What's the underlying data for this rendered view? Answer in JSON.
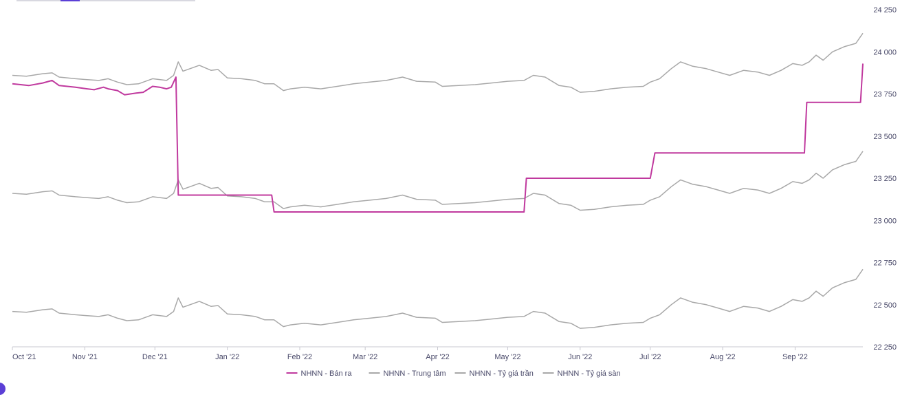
{
  "chart_data": {
    "type": "line",
    "xlim": [
      "2021-10-01",
      "2022-09-30"
    ],
    "ylim": [
      22250,
      24250
    ],
    "yticks": [
      22250,
      22500,
      22750,
      23000,
      23250,
      23500,
      23750,
      24000,
      24250
    ],
    "ytick_labels": [
      "22 250",
      "22 500",
      "22 750",
      "23 000",
      "23 250",
      "23 500",
      "23 750",
      "24 000",
      "24 250"
    ],
    "xticks": [
      "2021-10-01",
      "2021-11-01",
      "2021-12-01",
      "2022-01-01",
      "2022-02-01",
      "2022-03-01",
      "2022-04-01",
      "2022-05-01",
      "2022-06-01",
      "2022-07-01",
      "2022-08-01",
      "2022-09-01"
    ],
    "xtick_labels": [
      "Oct '21",
      "Nov '21",
      "Dec '21",
      "Jan '22",
      "Feb '22",
      "Mar '22",
      "Apr '22",
      "May '22",
      "Jun '22",
      "Jul '22",
      "Aug '22",
      "Sep '22"
    ],
    "legend_position": "bottom-center",
    "grid": false,
    "series": [
      {
        "name": "NHNN - Bán ra",
        "color": "#c0399e",
        "points": [
          [
            "2021-10-01",
            23810
          ],
          [
            "2021-10-08",
            23800
          ],
          [
            "2021-10-14",
            23815
          ],
          [
            "2021-10-18",
            23830
          ],
          [
            "2021-10-21",
            23800
          ],
          [
            "2021-10-28",
            23790
          ],
          [
            "2021-11-02",
            23780
          ],
          [
            "2021-11-05",
            23775
          ],
          [
            "2021-11-09",
            23790
          ],
          [
            "2021-11-11",
            23780
          ],
          [
            "2021-11-15",
            23770
          ],
          [
            "2021-11-18",
            23745
          ],
          [
            "2021-11-23",
            23755
          ],
          [
            "2021-11-26",
            23760
          ],
          [
            "2021-11-30",
            23795
          ],
          [
            "2021-12-03",
            23790
          ],
          [
            "2021-12-06",
            23780
          ],
          [
            "2021-12-08",
            23790
          ],
          [
            "2021-12-10",
            23850
          ],
          [
            "2021-12-11",
            23150
          ],
          [
            "2022-01-20",
            23150
          ],
          [
            "2022-01-21",
            23050
          ],
          [
            "2022-05-08",
            23050
          ],
          [
            "2022-05-09",
            23250
          ],
          [
            "2022-07-01",
            23250
          ],
          [
            "2022-07-03",
            23400
          ],
          [
            "2022-09-05",
            23400
          ],
          [
            "2022-09-06",
            23700
          ],
          [
            "2022-09-29",
            23700
          ],
          [
            "2022-09-30",
            23930
          ]
        ]
      },
      {
        "name": "NHNN - Trung tâm",
        "color": "#a8a8a8",
        "points": [
          [
            "2021-10-01",
            23160
          ],
          [
            "2021-10-07",
            23155
          ],
          [
            "2021-10-14",
            23170
          ],
          [
            "2021-10-18",
            23175
          ],
          [
            "2021-10-21",
            23150
          ],
          [
            "2021-10-28",
            23140
          ],
          [
            "2021-11-02",
            23135
          ],
          [
            "2021-11-07",
            23130
          ],
          [
            "2021-11-11",
            23140
          ],
          [
            "2021-11-15",
            23120
          ],
          [
            "2021-11-19",
            23105
          ],
          [
            "2021-11-24",
            23110
          ],
          [
            "2021-11-30",
            23140
          ],
          [
            "2021-12-06",
            23130
          ],
          [
            "2021-12-09",
            23160
          ],
          [
            "2021-12-11",
            23240
          ],
          [
            "2021-12-13",
            23185
          ],
          [
            "2021-12-16",
            23200
          ],
          [
            "2021-12-20",
            23220
          ],
          [
            "2021-12-25",
            23190
          ],
          [
            "2021-12-28",
            23195
          ],
          [
            "2022-01-01",
            23145
          ],
          [
            "2022-01-07",
            23140
          ],
          [
            "2022-01-13",
            23130
          ],
          [
            "2022-01-17",
            23110
          ],
          [
            "2022-01-21",
            23110
          ],
          [
            "2022-01-25",
            23070
          ],
          [
            "2022-01-28",
            23080
          ],
          [
            "2022-02-03",
            23090
          ],
          [
            "2022-02-10",
            23080
          ],
          [
            "2022-02-17",
            23095
          ],
          [
            "2022-02-24",
            23110
          ],
          [
            "2022-03-03",
            23120
          ],
          [
            "2022-03-10",
            23130
          ],
          [
            "2022-03-17",
            23150
          ],
          [
            "2022-03-23",
            23125
          ],
          [
            "2022-03-31",
            23120
          ],
          [
            "2022-04-03",
            23095
          ],
          [
            "2022-04-10",
            23100
          ],
          [
            "2022-04-17",
            23105
          ],
          [
            "2022-04-24",
            23115
          ],
          [
            "2022-05-01",
            23125
          ],
          [
            "2022-05-08",
            23130
          ],
          [
            "2022-05-12",
            23160
          ],
          [
            "2022-05-17",
            23150
          ],
          [
            "2022-05-23",
            23100
          ],
          [
            "2022-05-28",
            23090
          ],
          [
            "2022-06-01",
            23060
          ],
          [
            "2022-06-07",
            23065
          ],
          [
            "2022-06-14",
            23080
          ],
          [
            "2022-06-21",
            23090
          ],
          [
            "2022-06-28",
            23095
          ],
          [
            "2022-07-01",
            23120
          ],
          [
            "2022-07-05",
            23140
          ],
          [
            "2022-07-10",
            23200
          ],
          [
            "2022-07-14",
            23240
          ],
          [
            "2022-07-19",
            23215
          ],
          [
            "2022-07-25",
            23200
          ],
          [
            "2022-07-30",
            23180
          ],
          [
            "2022-08-04",
            23160
          ],
          [
            "2022-08-10",
            23190
          ],
          [
            "2022-08-16",
            23180
          ],
          [
            "2022-08-21",
            23160
          ],
          [
            "2022-08-26",
            23190
          ],
          [
            "2022-08-31",
            23230
          ],
          [
            "2022-09-04",
            23220
          ],
          [
            "2022-09-07",
            23240
          ],
          [
            "2022-09-10",
            23280
          ],
          [
            "2022-09-13",
            23250
          ],
          [
            "2022-09-17",
            23300
          ],
          [
            "2022-09-22",
            23330
          ],
          [
            "2022-09-27",
            23350
          ],
          [
            "2022-09-30",
            23410
          ]
        ]
      },
      {
        "name": "NHNN - Tỷ giá trần",
        "color": "#a8a8a8",
        "points": [
          [
            "2021-10-01",
            23860
          ],
          [
            "2021-10-07",
            23855
          ],
          [
            "2021-10-14",
            23870
          ],
          [
            "2021-10-18",
            23875
          ],
          [
            "2021-10-21",
            23850
          ],
          [
            "2021-10-28",
            23840
          ],
          [
            "2021-11-02",
            23835
          ],
          [
            "2021-11-07",
            23830
          ],
          [
            "2021-11-11",
            23840
          ],
          [
            "2021-11-15",
            23820
          ],
          [
            "2021-11-19",
            23805
          ],
          [
            "2021-11-24",
            23810
          ],
          [
            "2021-11-30",
            23840
          ],
          [
            "2021-12-06",
            23830
          ],
          [
            "2021-12-09",
            23860
          ],
          [
            "2021-12-11",
            23940
          ],
          [
            "2021-12-13",
            23885
          ],
          [
            "2021-12-16",
            23900
          ],
          [
            "2021-12-20",
            23920
          ],
          [
            "2021-12-25",
            23890
          ],
          [
            "2021-12-28",
            23895
          ],
          [
            "2022-01-01",
            23845
          ],
          [
            "2022-01-07",
            23840
          ],
          [
            "2022-01-13",
            23830
          ],
          [
            "2022-01-17",
            23810
          ],
          [
            "2022-01-21",
            23810
          ],
          [
            "2022-01-25",
            23770
          ],
          [
            "2022-01-28",
            23780
          ],
          [
            "2022-02-03",
            23790
          ],
          [
            "2022-02-10",
            23780
          ],
          [
            "2022-02-17",
            23795
          ],
          [
            "2022-02-24",
            23810
          ],
          [
            "2022-03-03",
            23820
          ],
          [
            "2022-03-10",
            23830
          ],
          [
            "2022-03-17",
            23850
          ],
          [
            "2022-03-23",
            23825
          ],
          [
            "2022-03-31",
            23820
          ],
          [
            "2022-04-03",
            23795
          ],
          [
            "2022-04-10",
            23800
          ],
          [
            "2022-04-17",
            23805
          ],
          [
            "2022-04-24",
            23815
          ],
          [
            "2022-05-01",
            23825
          ],
          [
            "2022-05-08",
            23830
          ],
          [
            "2022-05-12",
            23860
          ],
          [
            "2022-05-17",
            23850
          ],
          [
            "2022-05-23",
            23800
          ],
          [
            "2022-05-28",
            23790
          ],
          [
            "2022-06-01",
            23760
          ],
          [
            "2022-06-07",
            23765
          ],
          [
            "2022-06-14",
            23780
          ],
          [
            "2022-06-21",
            23790
          ],
          [
            "2022-06-28",
            23795
          ],
          [
            "2022-07-01",
            23820
          ],
          [
            "2022-07-05",
            23840
          ],
          [
            "2022-07-10",
            23900
          ],
          [
            "2022-07-14",
            23940
          ],
          [
            "2022-07-19",
            23915
          ],
          [
            "2022-07-25",
            23900
          ],
          [
            "2022-07-30",
            23880
          ],
          [
            "2022-08-04",
            23860
          ],
          [
            "2022-08-10",
            23890
          ],
          [
            "2022-08-16",
            23880
          ],
          [
            "2022-08-21",
            23860
          ],
          [
            "2022-08-26",
            23890
          ],
          [
            "2022-08-31",
            23930
          ],
          [
            "2022-09-04",
            23920
          ],
          [
            "2022-09-07",
            23940
          ],
          [
            "2022-09-10",
            23980
          ],
          [
            "2022-09-13",
            23950
          ],
          [
            "2022-09-17",
            24000
          ],
          [
            "2022-09-22",
            24030
          ],
          [
            "2022-09-27",
            24050
          ],
          [
            "2022-09-30",
            24110
          ]
        ]
      },
      {
        "name": "NHNN - Tỷ giá sàn",
        "color": "#a8a8a8",
        "points": [
          [
            "2021-10-01",
            22460
          ],
          [
            "2021-10-07",
            22455
          ],
          [
            "2021-10-14",
            22470
          ],
          [
            "2021-10-18",
            22475
          ],
          [
            "2021-10-21",
            22450
          ],
          [
            "2021-10-28",
            22440
          ],
          [
            "2021-11-02",
            22435
          ],
          [
            "2021-11-07",
            22430
          ],
          [
            "2021-11-11",
            22440
          ],
          [
            "2021-11-15",
            22420
          ],
          [
            "2021-11-19",
            22405
          ],
          [
            "2021-11-24",
            22410
          ],
          [
            "2021-11-30",
            22440
          ],
          [
            "2021-12-06",
            22430
          ],
          [
            "2021-12-09",
            22460
          ],
          [
            "2021-12-11",
            22540
          ],
          [
            "2021-12-13",
            22485
          ],
          [
            "2021-12-16",
            22500
          ],
          [
            "2021-12-20",
            22520
          ],
          [
            "2021-12-25",
            22490
          ],
          [
            "2021-12-28",
            22495
          ],
          [
            "2022-01-01",
            22445
          ],
          [
            "2022-01-07",
            22440
          ],
          [
            "2022-01-13",
            22430
          ],
          [
            "2022-01-17",
            22410
          ],
          [
            "2022-01-21",
            22410
          ],
          [
            "2022-01-25",
            22370
          ],
          [
            "2022-01-28",
            22380
          ],
          [
            "2022-02-03",
            22390
          ],
          [
            "2022-02-10",
            22380
          ],
          [
            "2022-02-17",
            22395
          ],
          [
            "2022-02-24",
            22410
          ],
          [
            "2022-03-03",
            22420
          ],
          [
            "2022-03-10",
            22430
          ],
          [
            "2022-03-17",
            22450
          ],
          [
            "2022-03-23",
            22425
          ],
          [
            "2022-03-31",
            22420
          ],
          [
            "2022-04-03",
            22395
          ],
          [
            "2022-04-10",
            22400
          ],
          [
            "2022-04-17",
            22405
          ],
          [
            "2022-04-24",
            22415
          ],
          [
            "2022-05-01",
            22425
          ],
          [
            "2022-05-08",
            22430
          ],
          [
            "2022-05-12",
            22460
          ],
          [
            "2022-05-17",
            22450
          ],
          [
            "2022-05-23",
            22400
          ],
          [
            "2022-05-28",
            22390
          ],
          [
            "2022-06-01",
            22360
          ],
          [
            "2022-06-07",
            22365
          ],
          [
            "2022-06-14",
            22380
          ],
          [
            "2022-06-21",
            22390
          ],
          [
            "2022-06-28",
            22395
          ],
          [
            "2022-07-01",
            22420
          ],
          [
            "2022-07-05",
            22440
          ],
          [
            "2022-07-10",
            22500
          ],
          [
            "2022-07-14",
            22540
          ],
          [
            "2022-07-19",
            22515
          ],
          [
            "2022-07-25",
            22500
          ],
          [
            "2022-07-30",
            22480
          ],
          [
            "2022-08-04",
            22460
          ],
          [
            "2022-08-10",
            22490
          ],
          [
            "2022-08-16",
            22480
          ],
          [
            "2022-08-21",
            22460
          ],
          [
            "2022-08-26",
            22490
          ],
          [
            "2022-08-31",
            22530
          ],
          [
            "2022-09-04",
            22520
          ],
          [
            "2022-09-07",
            22540
          ],
          [
            "2022-09-10",
            22580
          ],
          [
            "2022-09-13",
            22550
          ],
          [
            "2022-09-17",
            22600
          ],
          [
            "2022-09-22",
            22630
          ],
          [
            "2022-09-27",
            22650
          ],
          [
            "2022-09-30",
            22710
          ]
        ]
      }
    ]
  }
}
